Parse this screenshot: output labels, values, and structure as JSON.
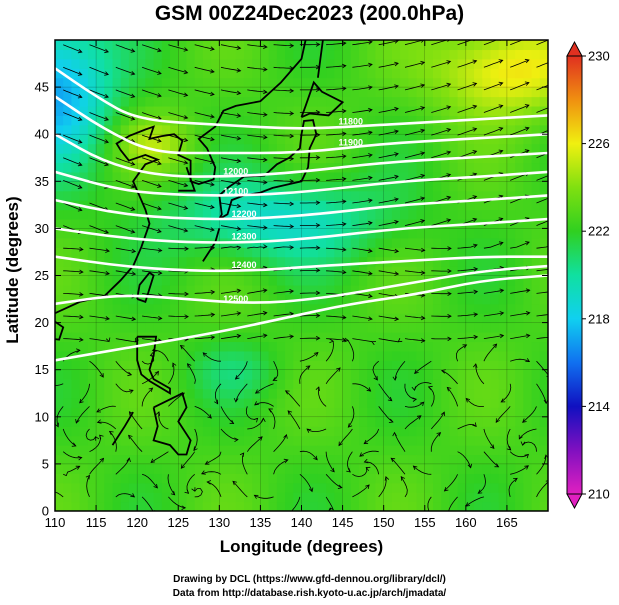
{
  "title": "GSM 00Z24Dec2023 (200.0hPa)",
  "x_axis": {
    "label": "Longitude (degrees)",
    "range": [
      110,
      170
    ],
    "ticks": [
      110,
      115,
      120,
      125,
      130,
      135,
      140,
      145,
      150,
      155,
      160,
      165
    ]
  },
  "y_axis": {
    "label": "Latitude  (degrees)",
    "range": [
      0,
      50
    ],
    "ticks": [
      0,
      5,
      10,
      15,
      20,
      25,
      30,
      35,
      40,
      45
    ]
  },
  "colorbar": {
    "range": [
      210,
      230
    ],
    "ticks": [
      210,
      214,
      218,
      222,
      226,
      230
    ],
    "stops": [
      {
        "v": 210,
        "c": "#e020c0"
      },
      {
        "v": 212,
        "c": "#8010c0"
      },
      {
        "v": 214,
        "c": "#1010c0"
      },
      {
        "v": 216,
        "c": "#1070f0"
      },
      {
        "v": 218,
        "c": "#10d0f0"
      },
      {
        "v": 220,
        "c": "#10e0a0"
      },
      {
        "v": 222,
        "c": "#30d020"
      },
      {
        "v": 224,
        "c": "#80e010"
      },
      {
        "v": 226,
        "c": "#f0f010"
      },
      {
        "v": 228,
        "c": "#f09010"
      },
      {
        "v": 230,
        "c": "#e03020"
      }
    ]
  },
  "contours": [
    {
      "label": "11800",
      "points": [
        [
          110,
          47
        ],
        [
          115,
          44
        ],
        [
          120,
          41.5
        ],
        [
          130,
          41
        ],
        [
          140,
          40.5
        ],
        [
          150,
          41
        ],
        [
          160,
          41.5
        ],
        [
          170,
          42
        ]
      ]
    },
    {
      "label": "11900",
      "points": [
        [
          110,
          44
        ],
        [
          116,
          40.5
        ],
        [
          122,
          38
        ],
        [
          130,
          38
        ],
        [
          140,
          38
        ],
        [
          150,
          39
        ],
        [
          160,
          39.5
        ],
        [
          170,
          40
        ]
      ]
    },
    {
      "label": "12000",
      "points": [
        [
          110,
          40
        ],
        [
          116,
          37
        ],
        [
          123,
          35.5
        ],
        [
          132,
          35.5
        ],
        [
          140,
          36
        ],
        [
          150,
          37
        ],
        [
          160,
          37.5
        ],
        [
          170,
          38
        ]
      ]
    },
    {
      "label": "12100",
      "points": [
        [
          110,
          36
        ],
        [
          118,
          34
        ],
        [
          126,
          33.5
        ],
        [
          134,
          33.5
        ],
        [
          142,
          34
        ],
        [
          152,
          35
        ],
        [
          162,
          35.5
        ],
        [
          170,
          36
        ]
      ]
    },
    {
      "label": "12200",
      "points": [
        [
          110,
          33
        ],
        [
          118,
          31.5
        ],
        [
          126,
          31
        ],
        [
          134,
          31
        ],
        [
          142,
          31.5
        ],
        [
          152,
          32.5
        ],
        [
          162,
          33
        ],
        [
          170,
          33.5
        ]
      ]
    },
    {
      "label": "12300",
      "points": [
        [
          110,
          30
        ],
        [
          118,
          29
        ],
        [
          126,
          28.5
        ],
        [
          134,
          28.5
        ],
        [
          142,
          29
        ],
        [
          152,
          30
        ],
        [
          162,
          30.5
        ],
        [
          170,
          31
        ]
      ]
    },
    {
      "label": "12400",
      "points": [
        [
          110,
          27
        ],
        [
          118,
          26
        ],
        [
          126,
          25.5
        ],
        [
          134,
          25.5
        ],
        [
          142,
          26
        ],
        [
          152,
          26.5
        ],
        [
          162,
          27
        ],
        [
          170,
          27
        ]
      ]
    },
    {
      "label": "12500",
      "points": [
        [
          110,
          22
        ],
        [
          118,
          23
        ],
        [
          126,
          22.5
        ],
        [
          134,
          22
        ],
        [
          142,
          22.5
        ],
        [
          152,
          24
        ],
        [
          162,
          25.5
        ],
        [
          170,
          26
        ]
      ]
    },
    {
      "label": "",
      "points": [
        [
          110,
          16
        ],
        [
          120,
          17.5
        ],
        [
          130,
          19
        ],
        [
          138,
          20.5
        ],
        [
          146,
          22
        ],
        [
          154,
          23
        ],
        [
          162,
          24.5
        ],
        [
          170,
          25
        ]
      ]
    }
  ],
  "contour_labels": [
    {
      "text": "11800",
      "lon": 146,
      "lat": 40.8
    },
    {
      "text": "11900",
      "lon": 146,
      "lat": 38.6
    },
    {
      "text": "12000",
      "lon": 132,
      "lat": 35.5
    },
    {
      "text": "12100",
      "lon": 132,
      "lat": 33.4
    },
    {
      "text": "12200",
      "lon": 133,
      "lat": 31
    },
    {
      "text": "12300",
      "lon": 133,
      "lat": 28.6
    },
    {
      "text": "12400",
      "lon": 133,
      "lat": 25.6
    },
    {
      "text": "12500",
      "lon": 132,
      "lat": 22
    }
  ],
  "credits": {
    "line1": "Drawing by DCL (https://www.gfd-dennou.org/library/dcl/)",
    "line2": "Data from http://database.rish.kyoto-u.ac.jp/arch/jmadata/"
  }
}
